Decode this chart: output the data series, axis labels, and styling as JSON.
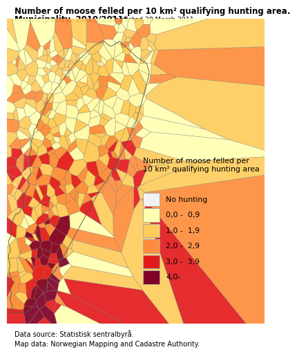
{
  "title_bold": "Number of moose felled per 10 km² qualifying hunting area.",
  "title_bold2": "Municipality. 2010/2011*",
  "title_normal": ". Corrected 28 March 2011",
  "legend_title": "Number of moose felled per\n10 km² qualifying hunting area",
  "legend_items": [
    {
      "label": "No hunting",
      "color": "#f2f2f2",
      "edgecolor": "#aaaaaa"
    },
    {
      "label": "0,0 -  0,9",
      "color": "#ffffb2",
      "edgecolor": "#aaaaaa"
    },
    {
      "label": "1,0 -  1,9",
      "color": "#fecc5c",
      "edgecolor": "#aaaaaa"
    },
    {
      "label": "2,0 -  2,9",
      "color": "#fd8d3c",
      "edgecolor": "#aaaaaa"
    },
    {
      "label": "3,0 -  3,9",
      "color": "#e31a1c",
      "edgecolor": "#aaaaaa"
    },
    {
      "label": "4,0-",
      "color": "#800026",
      "edgecolor": "#aaaaaa"
    }
  ],
  "datasource_line1": "Data source: Statistisk sentralbyrå.",
  "datasource_line2": "Map data: Norwegian Mapping and Cadastre Authority.",
  "bg_color": "#ffffff",
  "title_fontsize": 8.5,
  "legend_title_fontsize": 7.8,
  "legend_label_fontsize": 7.8,
  "datasource_fontsize": 7.0,
  "fig_width": 3.73,
  "fig_height": 5.15,
  "map_colors": [
    "#ffffb2",
    "#fecc5c",
    "#fd8d3c",
    "#e31a1c",
    "#800026",
    "#f2f2f2"
  ]
}
